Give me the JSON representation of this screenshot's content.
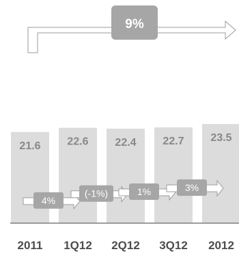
{
  "summary": {
    "total_change_label": "9%"
  },
  "chart_data": {
    "type": "bar",
    "categories": [
      "2011",
      "1Q12",
      "2Q12",
      "3Q12",
      "2012"
    ],
    "values": [
      21.6,
      22.6,
      22.4,
      22.7,
      23.5
    ],
    "value_labels": [
      "21.6",
      "22.6",
      "22.4",
      "22.7",
      "23.5"
    ],
    "changes": [
      "4%",
      "(-1%)",
      "1%",
      "3%"
    ],
    "ylim": [
      0,
      24.5
    ],
    "bar_color": "#dcdcdc",
    "label_color": "#888888",
    "badge_color": "#a6a6a6",
    "arrow_color": "#9c9c9c",
    "axis_color": "#7f7f7f",
    "tick_color": "#4d4d4d"
  }
}
